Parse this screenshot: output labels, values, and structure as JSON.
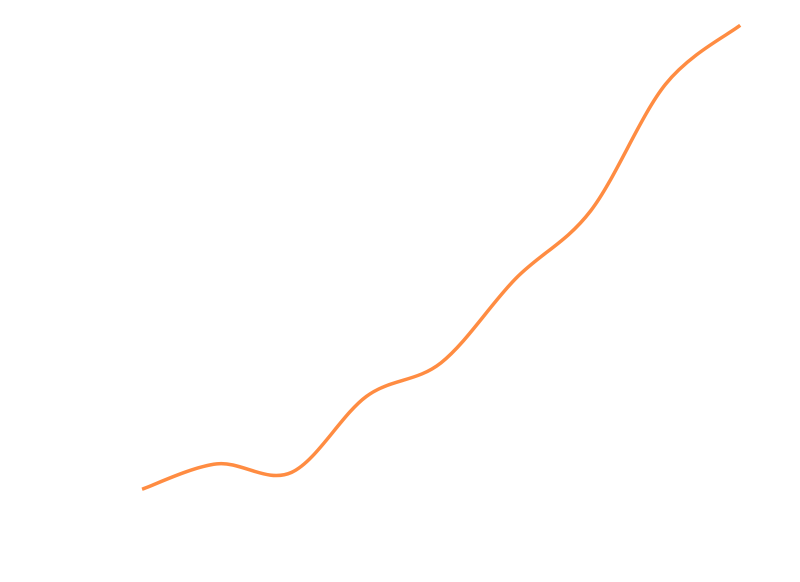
{
  "chart_data": {
    "type": "line",
    "title": "",
    "xlabel": "",
    "ylabel": "",
    "grid": false,
    "smooth": true,
    "series": [
      {
        "color": "#ff8c42",
        "x": [
          0,
          1,
          2,
          3,
          4,
          5,
          6,
          7,
          8
        ],
        "values": [
          11.0,
          14.0,
          13.0,
          22.0,
          26.0,
          36.0,
          44.0,
          59.0,
          66.0
        ]
      }
    ],
    "xlim": [
      -1.9,
      8.8
    ],
    "ylim": [
      0.0,
      69.0
    ]
  }
}
